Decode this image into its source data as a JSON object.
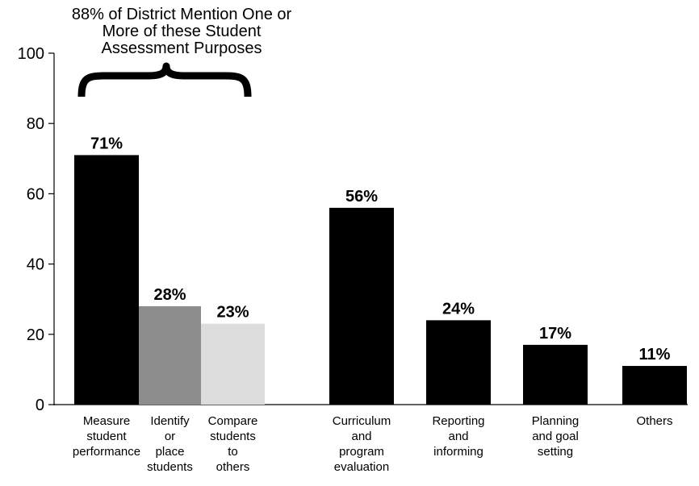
{
  "chart_data": {
    "type": "bar",
    "title": "",
    "xlabel": "",
    "ylabel": "",
    "ylim": [
      0,
      100
    ],
    "yticks": [
      0,
      20,
      40,
      60,
      80,
      100
    ],
    "grid": false,
    "legend": "none",
    "annotation": {
      "lines": [
        "88% of District Mention One or",
        "More of these Student",
        "Assessment Purposes"
      ],
      "brace_over": [
        "Measure student performance",
        "Identify or place students",
        "Compare students to others"
      ]
    },
    "categories": [
      {
        "lines": [
          "Measure",
          "student",
          "performance"
        ],
        "value": 71,
        "value_label": "71%",
        "color": "#000000"
      },
      {
        "lines": [
          "Identify",
          "or",
          "place",
          "students"
        ],
        "value": 28,
        "value_label": "28%",
        "color": "#8c8c8c"
      },
      {
        "lines": [
          "Compare",
          "students",
          "to",
          "others"
        ],
        "value": 23,
        "value_label": "23%",
        "color": "#dcdcdc"
      },
      {
        "lines": [
          "Curriculum",
          "and",
          "program",
          "evaluation"
        ],
        "value": 56,
        "value_label": "56%",
        "color": "#000000"
      },
      {
        "lines": [
          "Reporting",
          "and",
          "informing"
        ],
        "value": 24,
        "value_label": "24%",
        "color": "#000000"
      },
      {
        "lines": [
          "Planning",
          "and goal",
          "setting"
        ],
        "value": 17,
        "value_label": "17%",
        "color": "#000000"
      },
      {
        "lines": [
          "Others"
        ],
        "value": 11,
        "value_label": "11%",
        "color": "#000000"
      }
    ]
  }
}
